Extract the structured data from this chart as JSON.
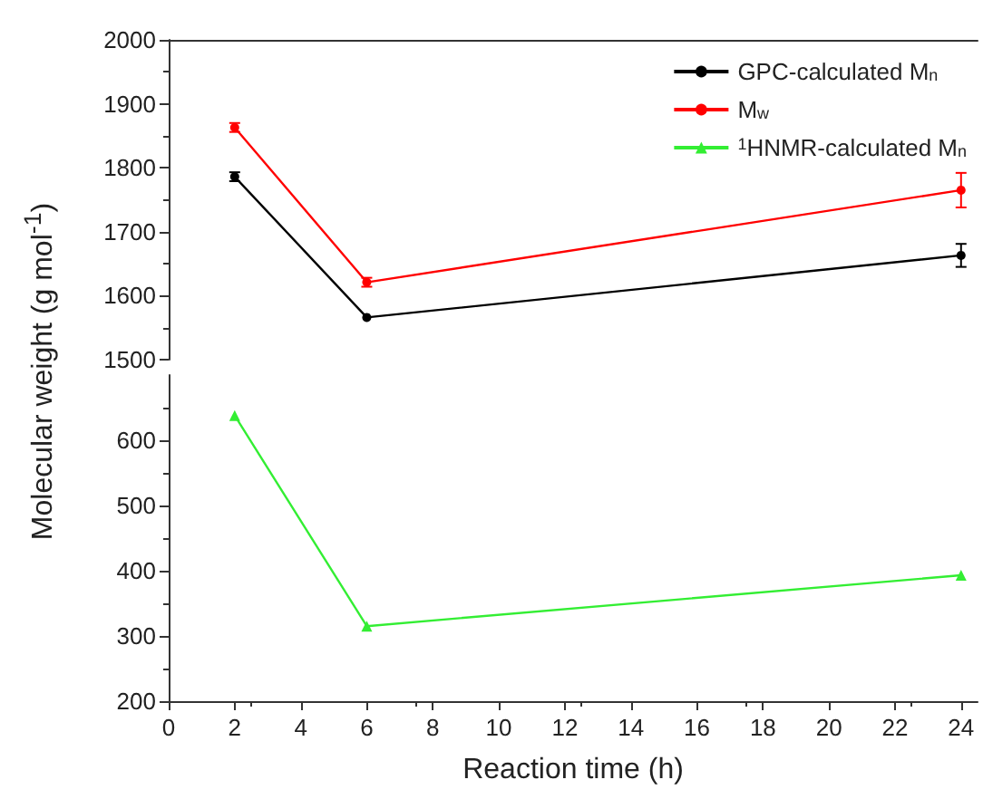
{
  "chart_data": [
    {
      "type": "line",
      "ylabel": "Molecular weight (g mol$^{-1}$)",
      "x": [
        2,
        6,
        24
      ],
      "xlim": [
        0,
        24.5
      ],
      "ylim": [
        1500,
        2000
      ],
      "yticks": [
        1500,
        1600,
        1700,
        1800,
        1900,
        2000
      ],
      "tick_labels": "y",
      "legend": "top right",
      "series": [
        {
          "name": "GPC-calculated M$_{n}$",
          "color": "#000000",
          "marker": "circle",
          "values": [
            1786,
            1566,
            1663
          ],
          "errors": [
            7,
            null,
            18
          ]
        },
        {
          "name": "M$_{w}$",
          "color": "#ff0000",
          "marker": "circle",
          "values": [
            1863,
            1621,
            1765
          ],
          "errors": [
            7,
            7,
            27
          ]
        },
        {
          "name": "$^{1}$HNMR-calculated M$_{n}$",
          "color": "#33ee33",
          "marker": "triangle",
          "values": [
            null,
            null,
            null
          ]
        }
      ]
    },
    {
      "type": "line",
      "xlabel": "Reaction time (h)",
      "x": [
        2,
        6,
        24
      ],
      "xlim": [
        0,
        24.5
      ],
      "xticks": [
        0,
        2,
        4,
        6,
        8,
        10,
        12,
        14,
        16,
        18,
        20,
        22,
        24
      ],
      "ylim": [
        200,
        700
      ],
      "yticks": [
        200,
        300,
        400,
        500,
        600
      ],
      "series": [
        {
          "color": "#33ee33",
          "marker": "triangle",
          "values": [
            638,
            315,
            393
          ]
        }
      ]
    }
  ]
}
